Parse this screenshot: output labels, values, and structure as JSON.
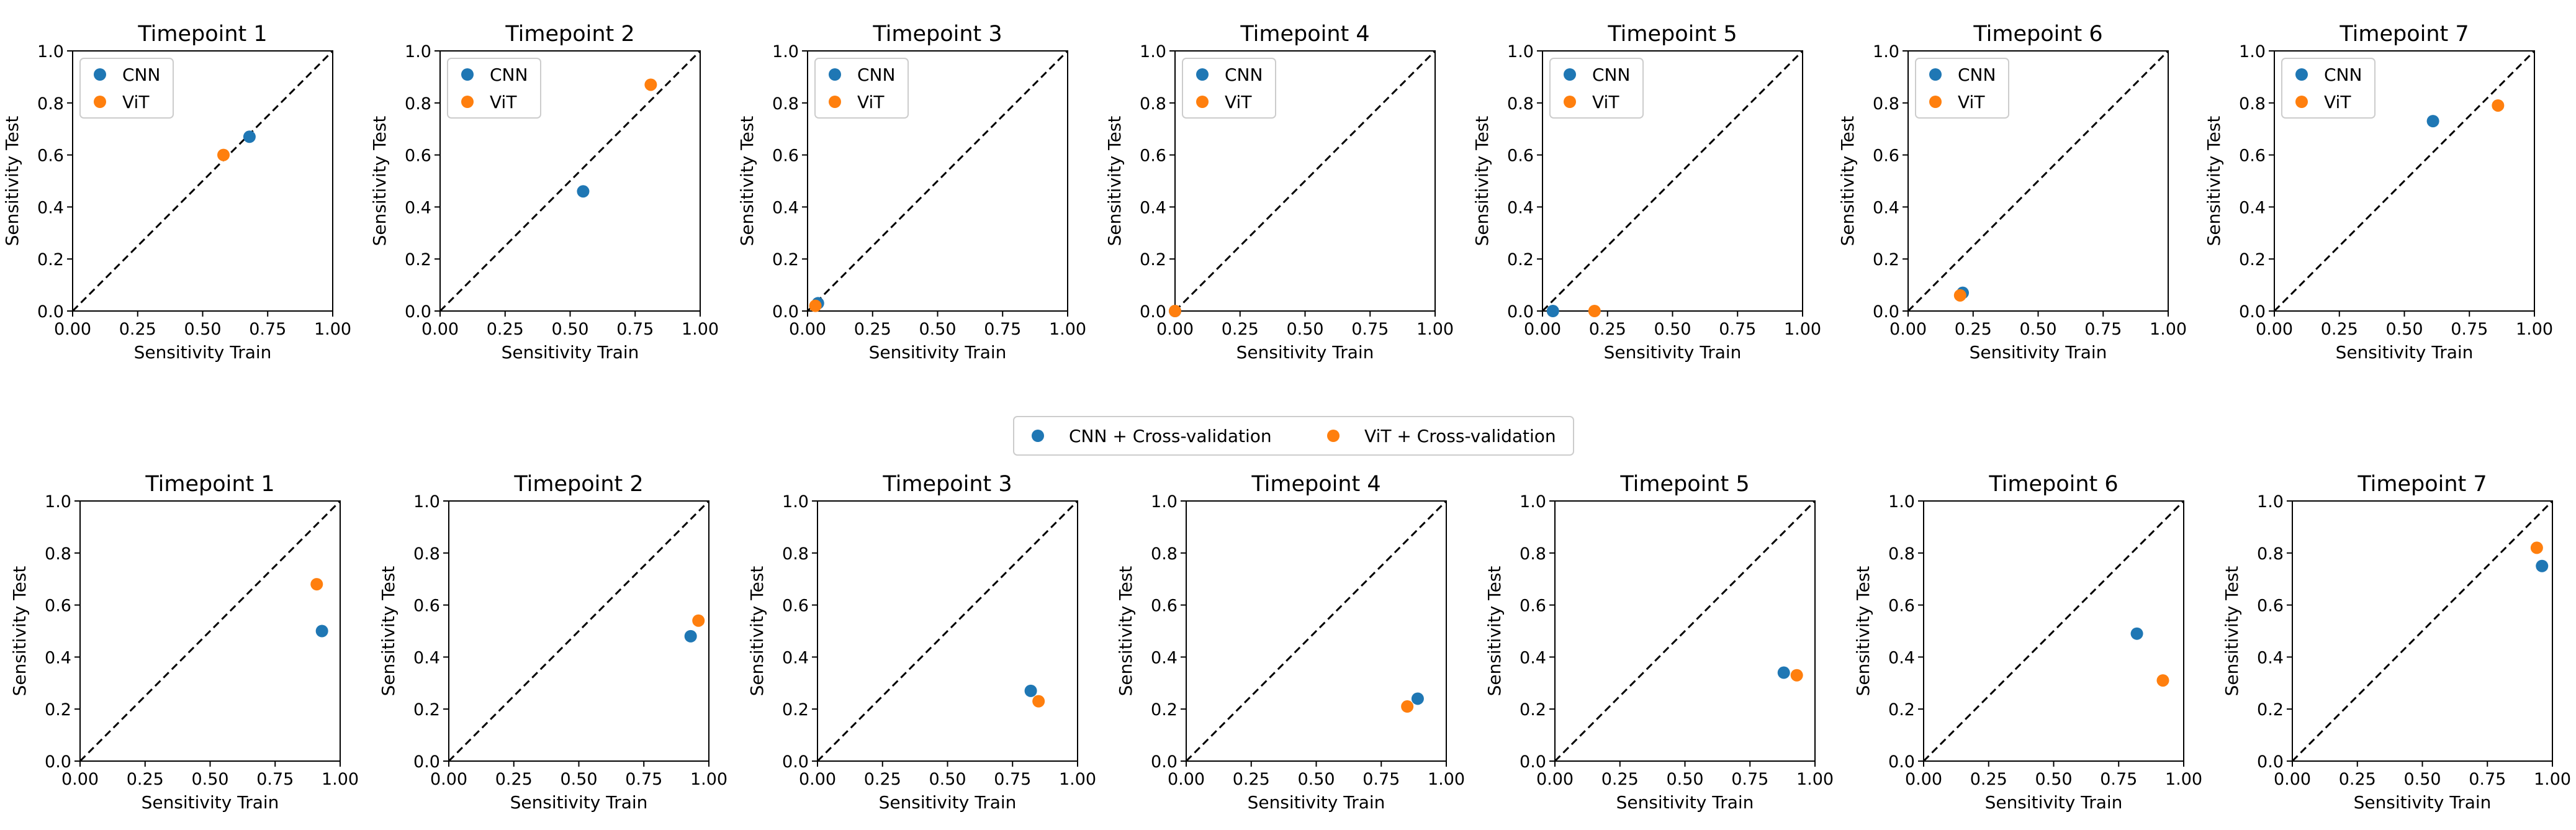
{
  "chart_data": [
    {
      "type": "scatter",
      "title": "Timepoint 1",
      "xlabel": "Sensitivity Train",
      "ylabel": "Sensitivity Test",
      "xlim": [
        0,
        1
      ],
      "ylim": [
        0,
        1
      ],
      "ticks": [
        "0.00",
        "0.25",
        "0.50",
        "0.75",
        "1.00"
      ],
      "yticks": [
        "0.0",
        "0.2",
        "0.4",
        "0.6",
        "0.8",
        "1.0"
      ],
      "reference": "y = x",
      "legend": "upper-left",
      "series": [
        {
          "name": "CNN",
          "color": "#1f77b4",
          "x": [
            0.68
          ],
          "y": [
            0.67
          ]
        },
        {
          "name": "ViT",
          "color": "#ff7f0e",
          "x": [
            0.58
          ],
          "y": [
            0.6
          ]
        }
      ]
    },
    {
      "type": "scatter",
      "title": "Timepoint 2",
      "xlabel": "Sensitivity Train",
      "ylabel": "Sensitivity Test",
      "xlim": [
        0,
        1
      ],
      "ylim": [
        0,
        1
      ],
      "ticks": [
        "0.00",
        "0.25",
        "0.50",
        "0.75",
        "1.00"
      ],
      "yticks": [
        "0.0",
        "0.2",
        "0.4",
        "0.6",
        "0.8",
        "1.0"
      ],
      "reference": "y = x",
      "legend": "upper-left",
      "series": [
        {
          "name": "CNN",
          "color": "#1f77b4",
          "x": [
            0.55
          ],
          "y": [
            0.46
          ]
        },
        {
          "name": "ViT",
          "color": "#ff7f0e",
          "x": [
            0.81
          ],
          "y": [
            0.87
          ]
        }
      ]
    },
    {
      "type": "scatter",
      "title": "Timepoint 3",
      "xlabel": "Sensitivity Train",
      "ylabel": "Sensitivity Test",
      "xlim": [
        0,
        1
      ],
      "ylim": [
        0,
        1
      ],
      "ticks": [
        "0.00",
        "0.25",
        "0.50",
        "0.75",
        "1.00"
      ],
      "yticks": [
        "0.0",
        "0.2",
        "0.4",
        "0.6",
        "0.8",
        "1.0"
      ],
      "reference": "y = x",
      "legend": "upper-left",
      "series": [
        {
          "name": "CNN",
          "color": "#1f77b4",
          "x": [
            0.04
          ],
          "y": [
            0.03
          ]
        },
        {
          "name": "ViT",
          "color": "#ff7f0e",
          "x": [
            0.03
          ],
          "y": [
            0.02
          ]
        }
      ]
    },
    {
      "type": "scatter",
      "title": "Timepoint 4",
      "xlabel": "Sensitivity Train",
      "ylabel": "Sensitivity Test",
      "xlim": [
        0,
        1
      ],
      "ylim": [
        0,
        1
      ],
      "ticks": [
        "0.00",
        "0.25",
        "0.50",
        "0.75",
        "1.00"
      ],
      "yticks": [
        "0.0",
        "0.2",
        "0.4",
        "0.6",
        "0.8",
        "1.0"
      ],
      "reference": "y = x",
      "legend": "upper-left",
      "series": [
        {
          "name": "CNN",
          "color": "#1f77b4",
          "x": [
            0.0
          ],
          "y": [
            0.0
          ]
        },
        {
          "name": "ViT",
          "color": "#ff7f0e",
          "x": [
            0.0
          ],
          "y": [
            0.0
          ]
        }
      ]
    },
    {
      "type": "scatter",
      "title": "Timepoint 5",
      "xlabel": "Sensitivity Train",
      "ylabel": "Sensitivity Test",
      "xlim": [
        0,
        1
      ],
      "ylim": [
        0,
        1
      ],
      "ticks": [
        "0.00",
        "0.25",
        "0.50",
        "0.75",
        "1.00"
      ],
      "yticks": [
        "0.0",
        "0.2",
        "0.4",
        "0.6",
        "0.8",
        "1.0"
      ],
      "reference": "y = x",
      "legend": "upper-left",
      "series": [
        {
          "name": "CNN",
          "color": "#1f77b4",
          "x": [
            0.04
          ],
          "y": [
            0.0
          ]
        },
        {
          "name": "ViT",
          "color": "#ff7f0e",
          "x": [
            0.2
          ],
          "y": [
            0.0
          ]
        }
      ]
    },
    {
      "type": "scatter",
      "title": "Timepoint 6",
      "xlabel": "Sensitivity Train",
      "ylabel": "Sensitivity Test",
      "xlim": [
        0,
        1
      ],
      "ylim": [
        0,
        1
      ],
      "ticks": [
        "0.00",
        "0.25",
        "0.50",
        "0.75",
        "1.00"
      ],
      "yticks": [
        "0.0",
        "0.2",
        "0.4",
        "0.6",
        "0.8",
        "1.0"
      ],
      "reference": "y = x",
      "legend": "upper-left",
      "series": [
        {
          "name": "CNN",
          "color": "#1f77b4",
          "x": [
            0.21
          ],
          "y": [
            0.07
          ]
        },
        {
          "name": "ViT",
          "color": "#ff7f0e",
          "x": [
            0.2
          ],
          "y": [
            0.06
          ]
        }
      ]
    },
    {
      "type": "scatter",
      "title": "Timepoint 7",
      "xlabel": "Sensitivity Train",
      "ylabel": "Sensitivity Test",
      "xlim": [
        0,
        1
      ],
      "ylim": [
        0,
        1
      ],
      "ticks": [
        "0.00",
        "0.25",
        "0.50",
        "0.75",
        "1.00"
      ],
      "yticks": [
        "0.0",
        "0.2",
        "0.4",
        "0.6",
        "0.8",
        "1.0"
      ],
      "reference": "y = x",
      "legend": "upper-left",
      "series": [
        {
          "name": "CNN",
          "color": "#1f77b4",
          "x": [
            0.61
          ],
          "y": [
            0.73
          ]
        },
        {
          "name": "ViT",
          "color": "#ff7f0e",
          "x": [
            0.86
          ],
          "y": [
            0.79
          ]
        }
      ]
    },
    {
      "type": "scatter",
      "title": "Timepoint 1",
      "xlabel": "Sensitivity Train",
      "ylabel": "Sensitivity Test",
      "xlim": [
        0,
        1
      ],
      "ylim": [
        0,
        1
      ],
      "ticks": [
        "0.00",
        "0.25",
        "0.50",
        "0.75",
        "1.00"
      ],
      "yticks": [
        "0.0",
        "0.2",
        "0.4",
        "0.6",
        "0.8",
        "1.0"
      ],
      "reference": "y = x",
      "series": [
        {
          "name": "CNN + Cross-validation",
          "color": "#1f77b4",
          "x": [
            0.93
          ],
          "y": [
            0.5
          ]
        },
        {
          "name": "ViT + Cross-validation",
          "color": "#ff7f0e",
          "x": [
            0.91
          ],
          "y": [
            0.68
          ]
        }
      ]
    },
    {
      "type": "scatter",
      "title": "Timepoint 2",
      "xlabel": "Sensitivity Train",
      "ylabel": "Sensitivity Test",
      "xlim": [
        0,
        1
      ],
      "ylim": [
        0,
        1
      ],
      "ticks": [
        "0.00",
        "0.25",
        "0.50",
        "0.75",
        "1.00"
      ],
      "yticks": [
        "0.0",
        "0.2",
        "0.4",
        "0.6",
        "0.8",
        "1.0"
      ],
      "reference": "y = x",
      "series": [
        {
          "name": "CNN + Cross-validation",
          "color": "#1f77b4",
          "x": [
            0.93
          ],
          "y": [
            0.48
          ]
        },
        {
          "name": "ViT + Cross-validation",
          "color": "#ff7f0e",
          "x": [
            0.96
          ],
          "y": [
            0.54
          ]
        }
      ]
    },
    {
      "type": "scatter",
      "title": "Timepoint 3",
      "xlabel": "Sensitivity Train",
      "ylabel": "Sensitivity Test",
      "xlim": [
        0,
        1
      ],
      "ylim": [
        0,
        1
      ],
      "ticks": [
        "0.00",
        "0.25",
        "0.50",
        "0.75",
        "1.00"
      ],
      "yticks": [
        "0.0",
        "0.2",
        "0.4",
        "0.6",
        "0.8",
        "1.0"
      ],
      "reference": "y = x",
      "series": [
        {
          "name": "CNN + Cross-validation",
          "color": "#1f77b4",
          "x": [
            0.82
          ],
          "y": [
            0.27
          ]
        },
        {
          "name": "ViT + Cross-validation",
          "color": "#ff7f0e",
          "x": [
            0.85
          ],
          "y": [
            0.23
          ]
        }
      ]
    },
    {
      "type": "scatter",
      "title": "Timepoint 4",
      "xlabel": "Sensitivity Train",
      "ylabel": "Sensitivity Test",
      "xlim": [
        0,
        1
      ],
      "ylim": [
        0,
        1
      ],
      "ticks": [
        "0.00",
        "0.25",
        "0.50",
        "0.75",
        "1.00"
      ],
      "yticks": [
        "0.0",
        "0.2",
        "0.4",
        "0.6",
        "0.8",
        "1.0"
      ],
      "reference": "y = x",
      "series": [
        {
          "name": "CNN + Cross-validation",
          "color": "#1f77b4",
          "x": [
            0.89
          ],
          "y": [
            0.24
          ]
        },
        {
          "name": "ViT + Cross-validation",
          "color": "#ff7f0e",
          "x": [
            0.85
          ],
          "y": [
            0.21
          ]
        }
      ]
    },
    {
      "type": "scatter",
      "title": "Timepoint 5",
      "xlabel": "Sensitivity Train",
      "ylabel": "Sensitivity Test",
      "xlim": [
        0,
        1
      ],
      "ylim": [
        0,
        1
      ],
      "ticks": [
        "0.00",
        "0.25",
        "0.50",
        "0.75",
        "1.00"
      ],
      "yticks": [
        "0.0",
        "0.2",
        "0.4",
        "0.6",
        "0.8",
        "1.0"
      ],
      "reference": "y = x",
      "series": [
        {
          "name": "CNN + Cross-validation",
          "color": "#1f77b4",
          "x": [
            0.88
          ],
          "y": [
            0.34
          ]
        },
        {
          "name": "ViT + Cross-validation",
          "color": "#ff7f0e",
          "x": [
            0.93
          ],
          "y": [
            0.33
          ]
        }
      ]
    },
    {
      "type": "scatter",
      "title": "Timepoint 6",
      "xlabel": "Sensitivity Train",
      "ylabel": "Sensitivity Test",
      "xlim": [
        0,
        1
      ],
      "ylim": [
        0,
        1
      ],
      "ticks": [
        "0.00",
        "0.25",
        "0.50",
        "0.75",
        "1.00"
      ],
      "yticks": [
        "0.0",
        "0.2",
        "0.4",
        "0.6",
        "0.8",
        "1.0"
      ],
      "reference": "y = x",
      "series": [
        {
          "name": "CNN + Cross-validation",
          "color": "#1f77b4",
          "x": [
            0.82
          ],
          "y": [
            0.49
          ]
        },
        {
          "name": "ViT + Cross-validation",
          "color": "#ff7f0e",
          "x": [
            0.92
          ],
          "y": [
            0.31
          ]
        }
      ]
    },
    {
      "type": "scatter",
      "title": "Timepoint 7",
      "xlabel": "Sensitivity Train",
      "ylabel": "Sensitivity Test",
      "xlim": [
        0,
        1
      ],
      "ylim": [
        0,
        1
      ],
      "ticks": [
        "0.00",
        "0.25",
        "0.50",
        "0.75",
        "1.00"
      ],
      "yticks": [
        "0.0",
        "0.2",
        "0.4",
        "0.6",
        "0.8",
        "1.0"
      ],
      "reference": "y = x",
      "series": [
        {
          "name": "CNN + Cross-validation",
          "color": "#1f77b4",
          "x": [
            0.96
          ],
          "y": [
            0.75
          ]
        },
        {
          "name": "ViT + Cross-validation",
          "color": "#ff7f0e",
          "x": [
            0.94
          ],
          "y": [
            0.82
          ]
        }
      ]
    }
  ],
  "shared_legend": {
    "placement": "center, between rows",
    "entries": [
      {
        "name": "CNN + Cross-validation",
        "color": "#1f77b4"
      },
      {
        "name": "ViT + Cross-validation",
        "color": "#ff7f0e"
      }
    ]
  }
}
